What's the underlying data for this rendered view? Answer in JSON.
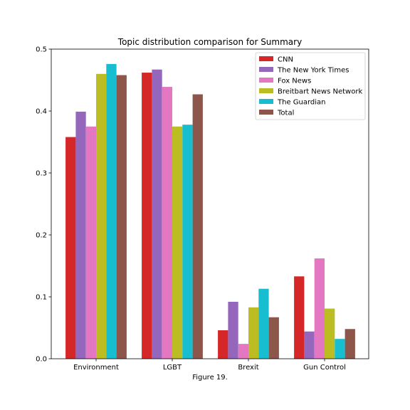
{
  "chart_data": {
    "type": "bar",
    "title": "Topic distribution comparison for Summary",
    "xlabel": "Figure 19.",
    "ylabel": "",
    "ylim": [
      0,
      0.5
    ],
    "yticks": [
      "0.0",
      "0.1",
      "0.2",
      "0.3",
      "0.4",
      "0.5"
    ],
    "categories": [
      "Environment",
      "LGBT",
      "Brexit",
      "Gun Control"
    ],
    "legend_position": "top-right",
    "grid": false,
    "series": [
      {
        "name": "CNN",
        "color": "#d62728",
        "values": [
          0.358,
          0.462,
          0.046,
          0.133
        ]
      },
      {
        "name": "The New York Times",
        "color": "#9467bd",
        "values": [
          0.399,
          0.467,
          0.092,
          0.044
        ]
      },
      {
        "name": "Fox News",
        "color": "#e377c2",
        "values": [
          0.375,
          0.439,
          0.024,
          0.162
        ]
      },
      {
        "name": "Breitbart News Network",
        "color": "#bcbd22",
        "values": [
          0.46,
          0.375,
          0.083,
          0.081
        ]
      },
      {
        "name": "The Guardian",
        "color": "#17becf",
        "values": [
          0.476,
          0.378,
          0.113,
          0.032
        ]
      },
      {
        "name": "Total",
        "color": "#8c564b",
        "values": [
          0.458,
          0.427,
          0.067,
          0.048
        ]
      }
    ]
  }
}
